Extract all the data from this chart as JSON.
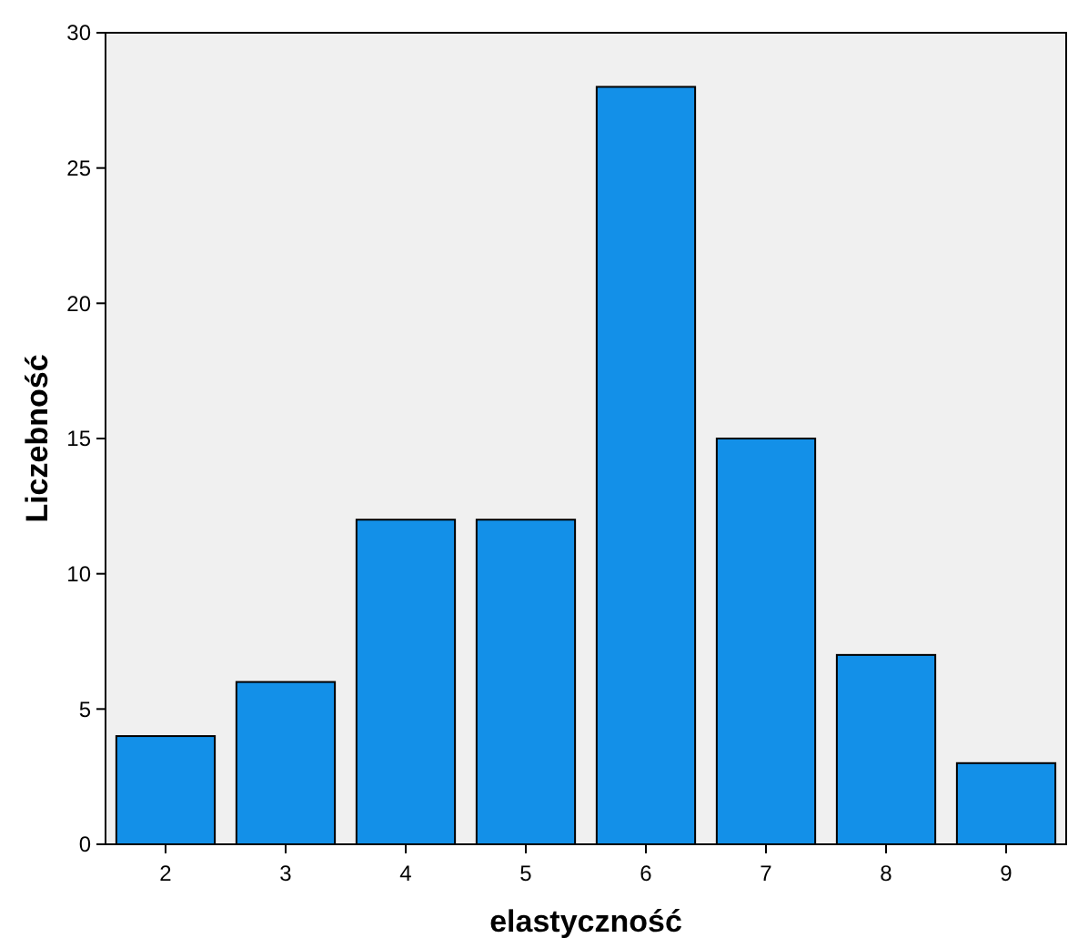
{
  "chart_data": {
    "type": "bar",
    "xlabel": "elastyczność",
    "ylabel": "Liczebność",
    "categories": [
      "2",
      "3",
      "4",
      "5",
      "6",
      "7",
      "8",
      "9"
    ],
    "values": [
      4,
      6,
      12,
      12,
      28,
      15,
      7,
      3
    ],
    "color": "#1390e8",
    "ylim": [
      0,
      30
    ],
    "yticks": [
      0,
      5,
      10,
      15,
      20,
      25,
      30
    ],
    "grid": false
  }
}
